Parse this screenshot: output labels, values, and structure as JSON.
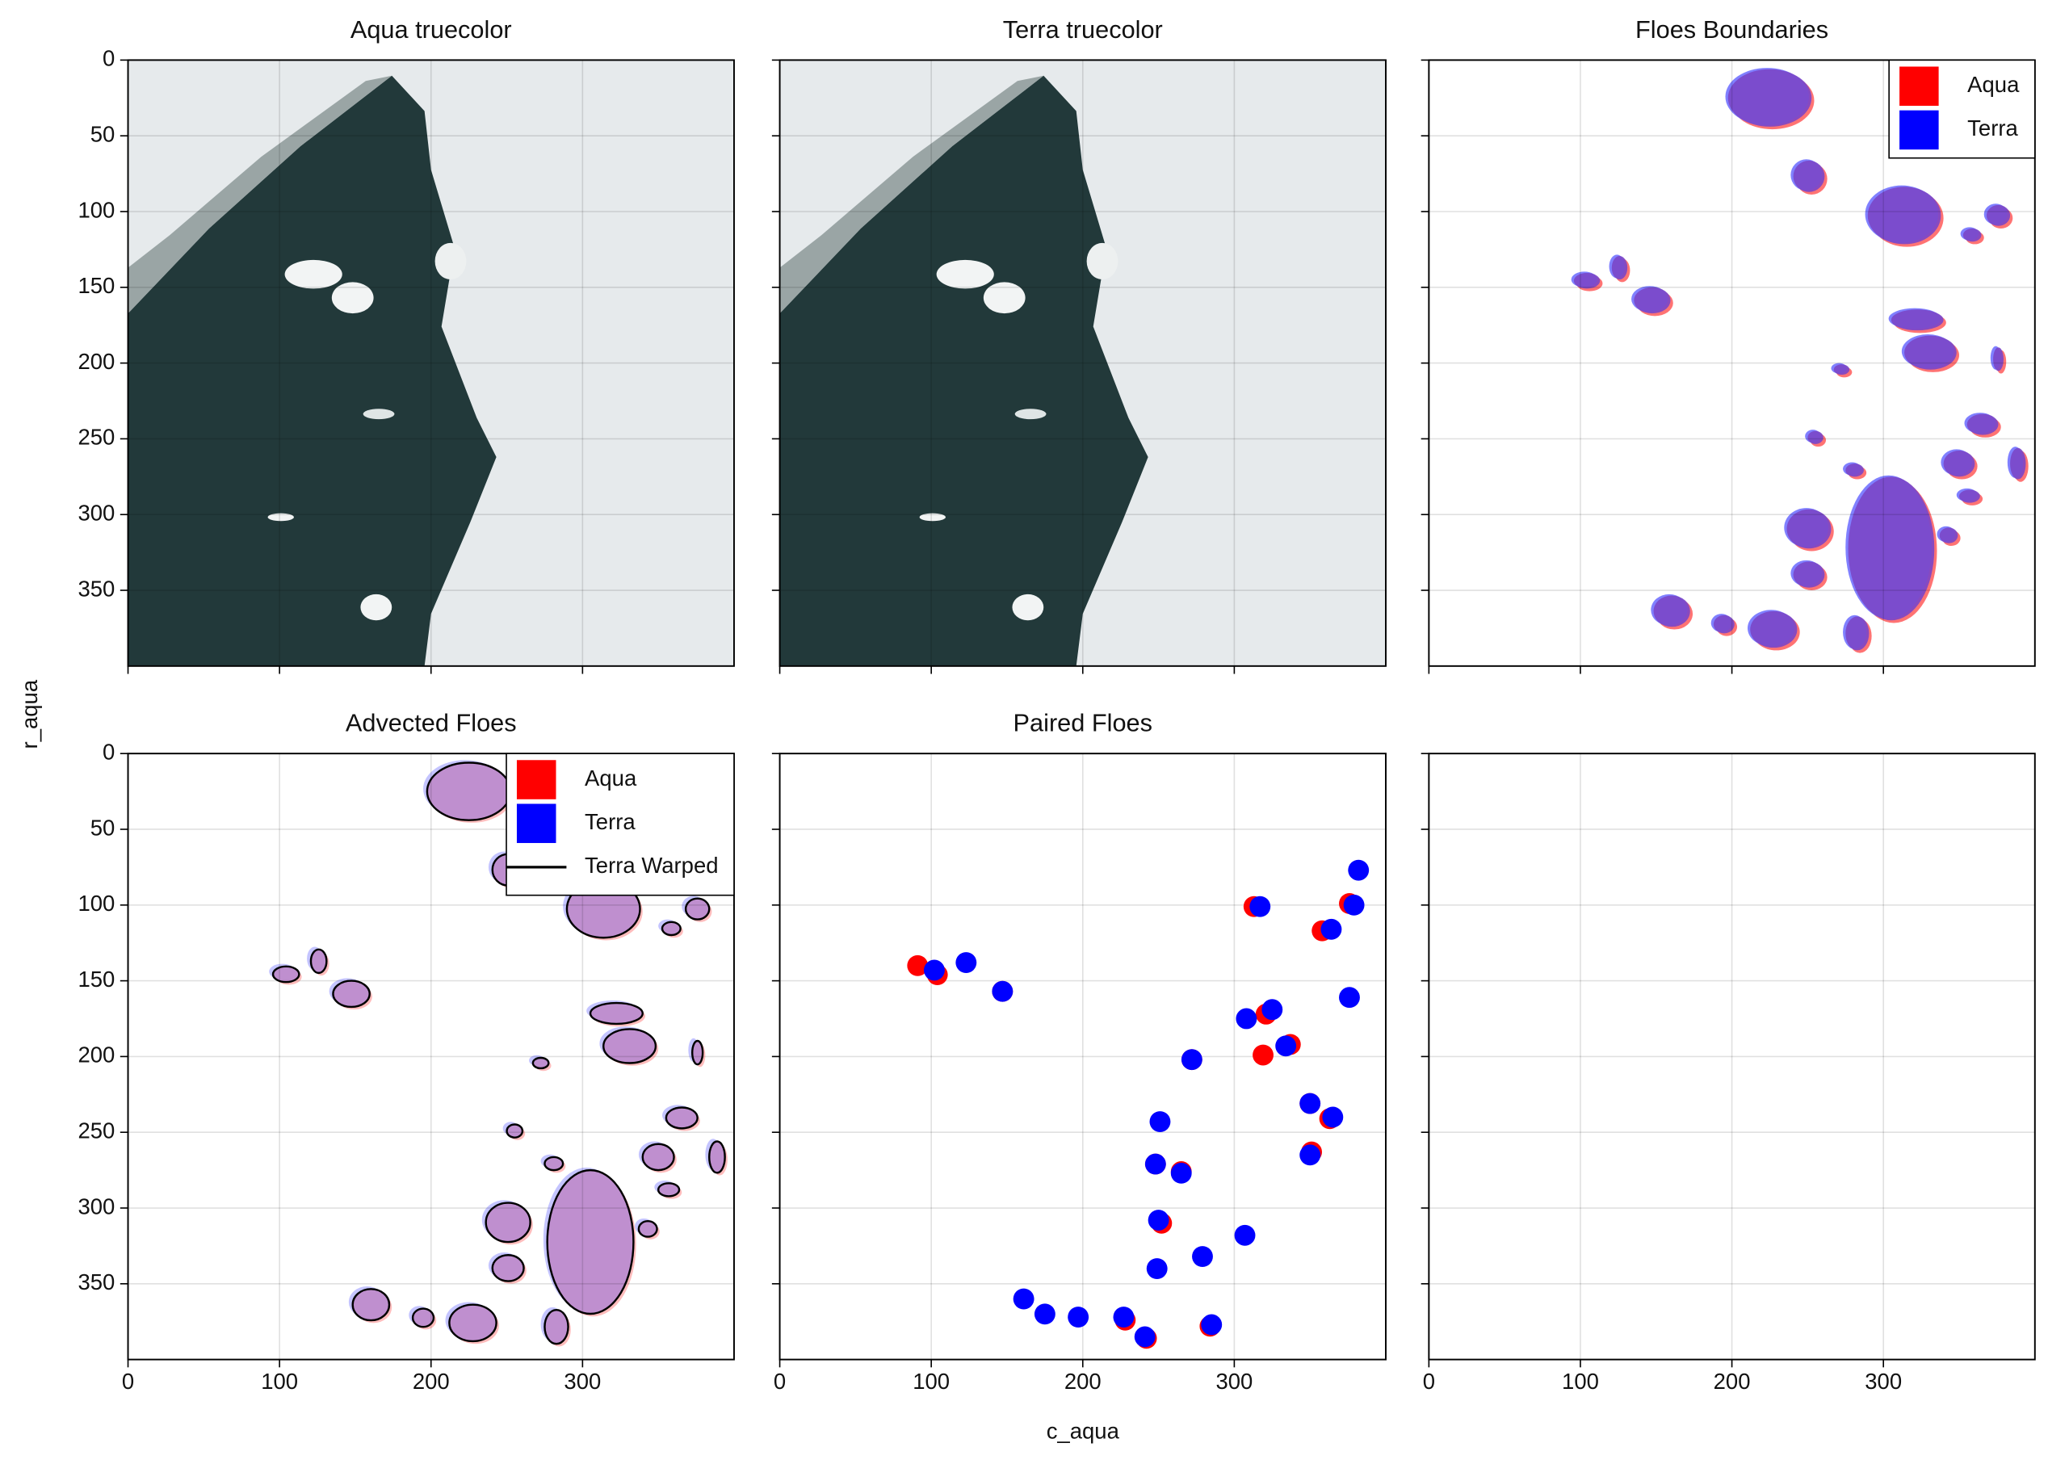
{
  "chart_data": [
    {
      "type": "image",
      "title": "Aqua truecolor",
      "xlim": [
        0,
        400
      ],
      "ylim": [
        400,
        0
      ],
      "xticks": [
        0,
        100,
        200,
        300
      ],
      "yticks": [
        0,
        50,
        100,
        150,
        200,
        250,
        300,
        350
      ],
      "xticklabels": false,
      "yticklabels": true,
      "grid": true
    },
    {
      "type": "image",
      "title": "Terra truecolor",
      "xlim": [
        0,
        400
      ],
      "ylim": [
        400,
        0
      ],
      "xticks": [
        0,
        100,
        200,
        300
      ],
      "yticks": [
        0,
        50,
        100,
        150,
        200,
        250,
        300,
        350
      ],
      "xticklabels": false,
      "yticklabels": false,
      "grid": true
    },
    {
      "type": "image",
      "title": "Floes Boundaries",
      "xlim": [
        0,
        400
      ],
      "ylim": [
        400,
        0
      ],
      "xticks": [
        0,
        100,
        200,
        300
      ],
      "yticks": [
        0,
        50,
        100,
        150,
        200,
        250,
        300,
        350
      ],
      "xticklabels": false,
      "yticklabels": false,
      "grid": true,
      "legend": "upper right",
      "series": [
        {
          "name": "Aqua",
          "color": "#ff0000"
        },
        {
          "name": "Terra",
          "color": "#0000ff"
        }
      ]
    },
    {
      "type": "image",
      "title": "Advected Floes",
      "ylabel": "r_aqua",
      "xlim": [
        0,
        400
      ],
      "ylim": [
        400,
        0
      ],
      "xticks": [
        0,
        100,
        200,
        300
      ],
      "yticks": [
        0,
        50,
        100,
        150,
        200,
        250,
        300,
        350
      ],
      "xticklabels": true,
      "yticklabels": true,
      "grid": true,
      "legend": "upper right",
      "series": [
        {
          "name": "Aqua",
          "color": "#ff0000"
        },
        {
          "name": "Terra",
          "color": "#0000ff"
        },
        {
          "name": "Terra Warped",
          "color": "#000000",
          "marker": "line"
        }
      ]
    },
    {
      "type": "scatter",
      "title": "Paired Floes",
      "xlabel": "c_aqua",
      "xlim": [
        0,
        400
      ],
      "ylim": [
        400,
        0
      ],
      "xticks": [
        0,
        100,
        200,
        300
      ],
      "yticks": [
        0,
        50,
        100,
        150,
        200,
        250,
        300,
        350
      ],
      "xticklabels": true,
      "yticklabels": false,
      "grid": true,
      "series": [
        {
          "name": "Aqua",
          "color": "#ff0000",
          "x": [
            91,
            104,
            147,
            313,
            376,
            358,
            321,
            319,
            337,
            272,
            350,
            363,
            351,
            248,
            265,
            252,
            228,
            284,
            242
          ],
          "y": [
            140,
            146,
            157,
            101,
            99,
            117,
            172,
            199,
            192,
            202,
            231,
            241,
            263,
            271,
            276,
            310,
            374,
            378,
            386
          ]
        },
        {
          "name": "Terra",
          "color": "#0000ff",
          "x": [
            102,
            123,
            147,
            317,
            382,
            379,
            364,
            308,
            325,
            376,
            334,
            272,
            251,
            350,
            365,
            350,
            248,
            265,
            250,
            307,
            279,
            249,
            161,
            175,
            197,
            227,
            285,
            241
          ],
          "y": [
            143,
            138,
            157,
            101,
            77,
            100,
            116,
            175,
            169,
            161,
            193,
            202,
            243,
            231,
            240,
            265,
            271,
            277,
            308,
            318,
            332,
            340,
            360,
            370,
            372,
            372,
            377,
            385
          ]
        }
      ]
    },
    {
      "type": "empty",
      "xlim": [
        0,
        400
      ],
      "ylim": [
        400,
        0
      ],
      "xticks": [
        0,
        100,
        200,
        300
      ],
      "yticks": [
        0,
        50,
        100,
        150,
        200,
        250,
        300,
        350
      ],
      "xticklabels": true,
      "yticklabels": false,
      "grid": true
    }
  ]
}
